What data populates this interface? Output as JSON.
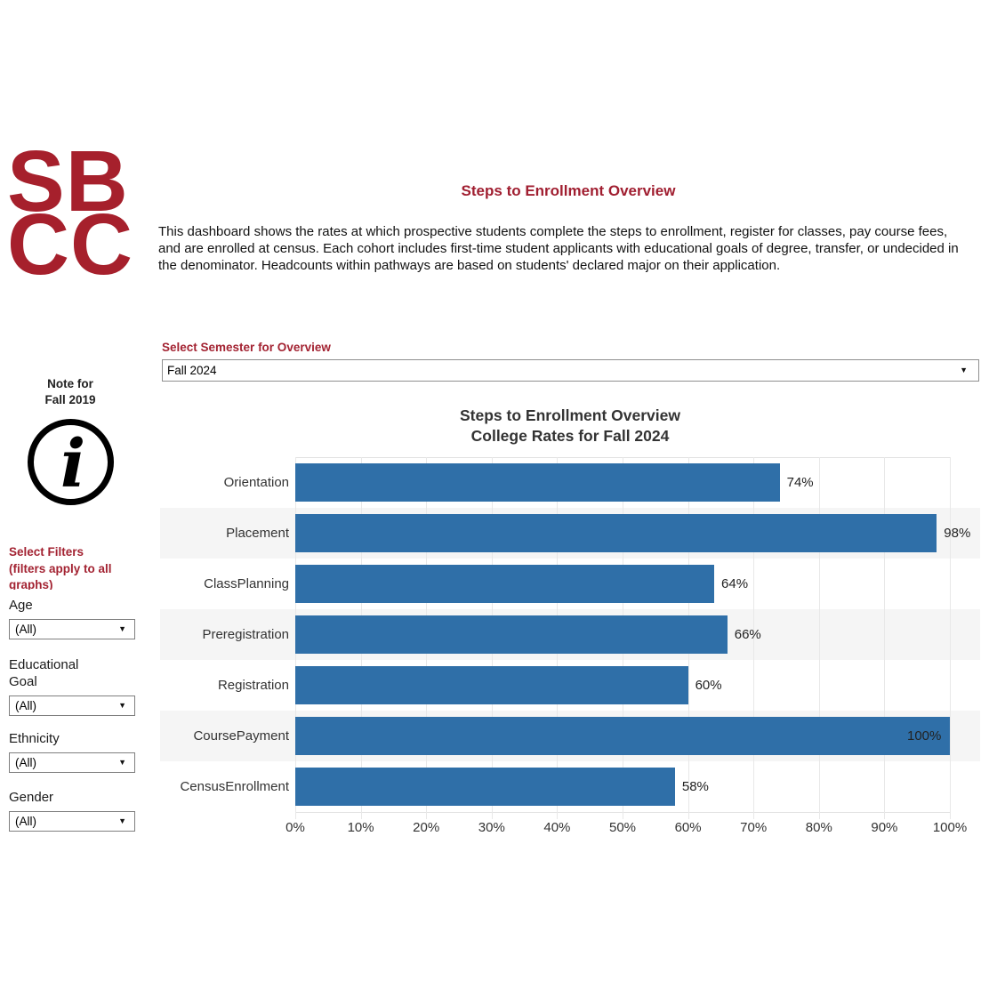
{
  "logo": {
    "line1": "SB",
    "line2": "CC"
  },
  "header": {
    "title": "Steps to Enrollment Overview",
    "description": "This dashboard shows the rates at which prospective students complete the steps to enrollment, register for classes, pay course fees, and are enrolled at census. Each cohort includes first-time student applicants with educational goals of degree, transfer, or undecided in the denominator. Headcounts within pathways are based on students' declared major on their application."
  },
  "semester": {
    "label": "Select Semester for Overview",
    "value": "Fall 2024",
    "arrow_icon": "▼"
  },
  "sidebar": {
    "note_line1": "Note for",
    "note_line2": "Fall 2019",
    "info_icon": "i",
    "filters_heading_line1": "Select Filters",
    "filters_heading_line2": "(filters apply to all graphs)",
    "filters": [
      {
        "label": "Age",
        "value": "(All)"
      },
      {
        "label": "Educational Goal",
        "value": "(All)"
      },
      {
        "label": "Ethnicity",
        "value": "(All)"
      },
      {
        "label": "Gender",
        "value": "(All)"
      }
    ]
  },
  "chart_data": {
    "type": "bar",
    "orientation": "horizontal",
    "title": "Steps to Enrollment Overview",
    "subtitle": "College Rates for Fall 2024",
    "categories": [
      "Orientation",
      "Placement",
      "ClassPlanning",
      "Preregistration",
      "Registration",
      "CoursePayment",
      "CensusEnrollment"
    ],
    "values": [
      74,
      98,
      64,
      66,
      60,
      100,
      58
    ],
    "value_labels": [
      "74%",
      "98%",
      "64%",
      "66%",
      "60%",
      "100%",
      "58%"
    ],
    "x_ticks": [
      "0%",
      "10%",
      "20%",
      "30%",
      "40%",
      "50%",
      "60%",
      "70%",
      "80%",
      "90%",
      "100%"
    ],
    "xlim": [
      0,
      100
    ],
    "grid": true,
    "legend": "none",
    "bar_color": "#2F6FA8",
    "band_color": "#F5F5F5"
  },
  "colors": {
    "brand_red": "#A6202C",
    "title_red": "#A01E30",
    "bar_blue": "#2F6FA8",
    "band_gray": "#F5F5F5"
  }
}
